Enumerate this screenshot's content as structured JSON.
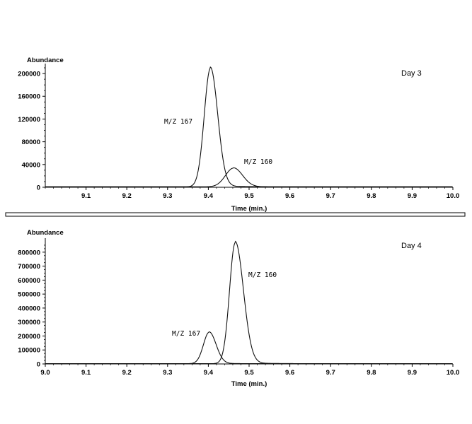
{
  "colors": {
    "trace": "#111111",
    "axis": "#000000",
    "separator_fill": "#ffffff"
  },
  "chart_data": [
    {
      "type": "line",
      "title": "",
      "panel_label": "Day 3",
      "ylabel": "Abundance",
      "xlabel": "Time (min.)",
      "xlim": [
        9.0,
        10.0
      ],
      "ylim": [
        0,
        210000
      ],
      "x_ticks": [
        "9.1",
        "9.2",
        "9.3",
        "9.4",
        "9.5",
        "9.6",
        "9.7",
        "9.8",
        "9.9",
        "10.0"
      ],
      "y_ticks": [
        "0",
        "40000",
        "80000",
        "120000",
        "160000",
        "200000"
      ],
      "grid": false,
      "series": [
        {
          "name": "M/Z 167",
          "peak_time": 9.405,
          "peak_height": 208000,
          "width_left": 0.015,
          "width_right": 0.018,
          "baseline": 800
        },
        {
          "name": "M/Z 160",
          "peak_time": 9.462,
          "peak_height": 33000,
          "width_left": 0.02,
          "width_right": 0.022,
          "baseline": 800
        }
      ]
    },
    {
      "type": "line",
      "title": "",
      "panel_label": "Day 4",
      "ylabel": "Abundance",
      "xlabel": "Time (min.)",
      "xlim": [
        9.0,
        10.0
      ],
      "ylim": [
        0,
        870000
      ],
      "x_ticks": [
        "9.0",
        "9.1",
        "9.2",
        "9.3",
        "9.4",
        "9.5",
        "9.6",
        "9.7",
        "9.8",
        "9.9",
        "10.0"
      ],
      "y_ticks": [
        "0",
        "100000",
        "200000",
        "300000",
        "400000",
        "500000",
        "600000",
        "700000",
        "800000"
      ],
      "grid": false,
      "series": [
        {
          "name": "M/Z 167",
          "peak_time": 9.402,
          "peak_height": 225000,
          "width_left": 0.014,
          "width_right": 0.017,
          "baseline": 2000
        },
        {
          "name": "M/Z 160",
          "peak_time": 9.466,
          "peak_height": 865000,
          "width_left": 0.014,
          "width_right": 0.02,
          "baseline": 2000
        }
      ]
    }
  ]
}
